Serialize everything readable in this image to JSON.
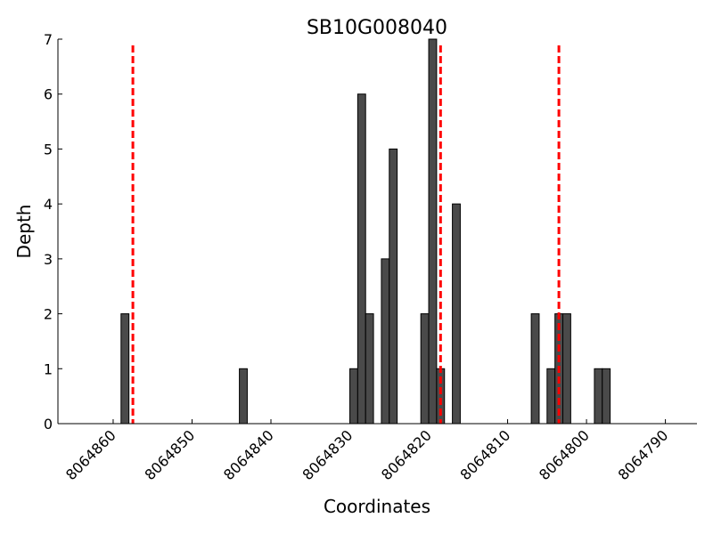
{
  "chart_data": {
    "type": "bar",
    "title": "SB10G008040",
    "xlabel": "Coordinates",
    "ylabel": "Depth",
    "xlim": [
      8064867,
      8064786
    ],
    "ylim": [
      0,
      7
    ],
    "x_ticks": [
      8064860,
      8064850,
      8064840,
      8064830,
      8064820,
      8064810,
      8064800,
      8064790
    ],
    "y_ticks": [
      0,
      1,
      2,
      3,
      4,
      5,
      6,
      7
    ],
    "bar_width": 1,
    "bar_color": "#4a4a4a",
    "bars": [
      {
        "x": 8064858,
        "y": 2
      },
      {
        "x": 8064843,
        "y": 1
      },
      {
        "x": 8064829,
        "y": 1
      },
      {
        "x": 8064828,
        "y": 6
      },
      {
        "x": 8064827,
        "y": 2
      },
      {
        "x": 8064825,
        "y": 3
      },
      {
        "x": 8064824,
        "y": 5
      },
      {
        "x": 8064820,
        "y": 2
      },
      {
        "x": 8064819,
        "y": 7
      },
      {
        "x": 8064818,
        "y": 1
      },
      {
        "x": 8064816,
        "y": 4
      },
      {
        "x": 8064806,
        "y": 2
      },
      {
        "x": 8064804,
        "y": 1
      },
      {
        "x": 8064803,
        "y": 2
      },
      {
        "x": 8064802,
        "y": 2
      },
      {
        "x": 8064798,
        "y": 1
      },
      {
        "x": 8064797,
        "y": 1
      }
    ],
    "vlines": {
      "positions": [
        8064857.5,
        8064818.5,
        8064803.5
      ],
      "color": "#ff0000",
      "style": "dashed"
    },
    "grid": false,
    "legend": "none"
  }
}
